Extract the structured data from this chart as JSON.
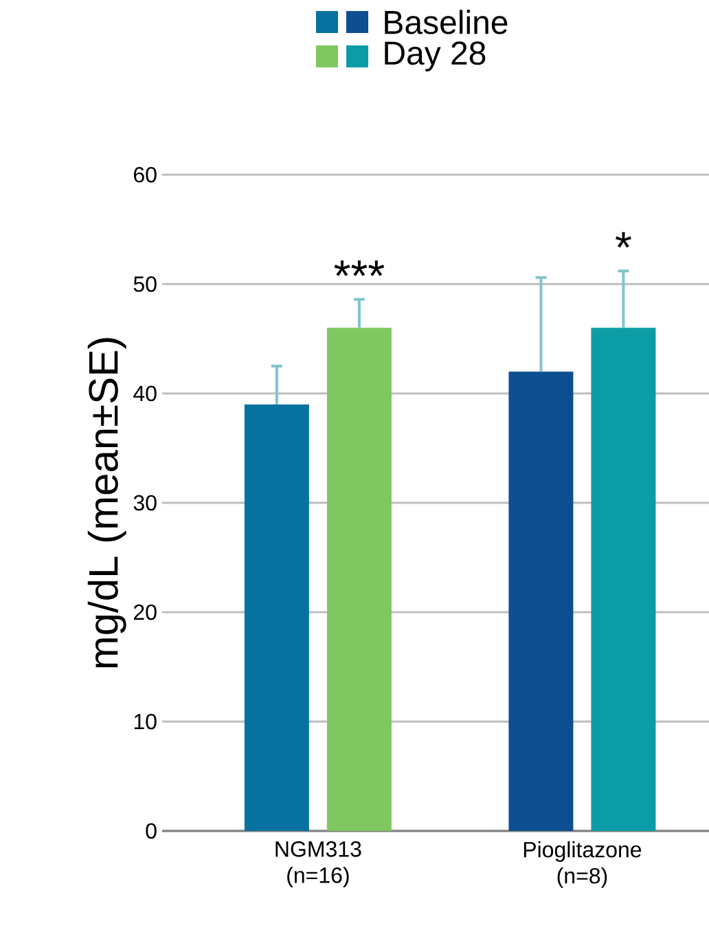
{
  "chart_data": {
    "type": "bar",
    "categories": [
      "NGM313 (n=16)",
      "Pioglitazone (n=8)"
    ],
    "series": [
      {
        "name": "Baseline",
        "colors": [
          "#05729f",
          "#0e4f91"
        ],
        "values": [
          39,
          42
        ],
        "errors": [
          [
            39,
            42.5
          ],
          [
            42,
            50.6
          ]
        ]
      },
      {
        "name": "Day 28",
        "colors": [
          "#7fc85f",
          "#0c9ca5"
        ],
        "values": [
          46,
          46
        ],
        "errors": [
          [
            46,
            48.6
          ],
          [
            46,
            51.2
          ]
        ]
      }
    ],
    "ylabel": "mg/dL (mean±SE)",
    "ylim": [
      0,
      60
    ],
    "yticks": [
      0,
      10,
      20,
      30,
      40,
      50,
      60
    ],
    "grid": "y",
    "legend": "top",
    "annotations": [
      "***",
      "*"
    ]
  }
}
